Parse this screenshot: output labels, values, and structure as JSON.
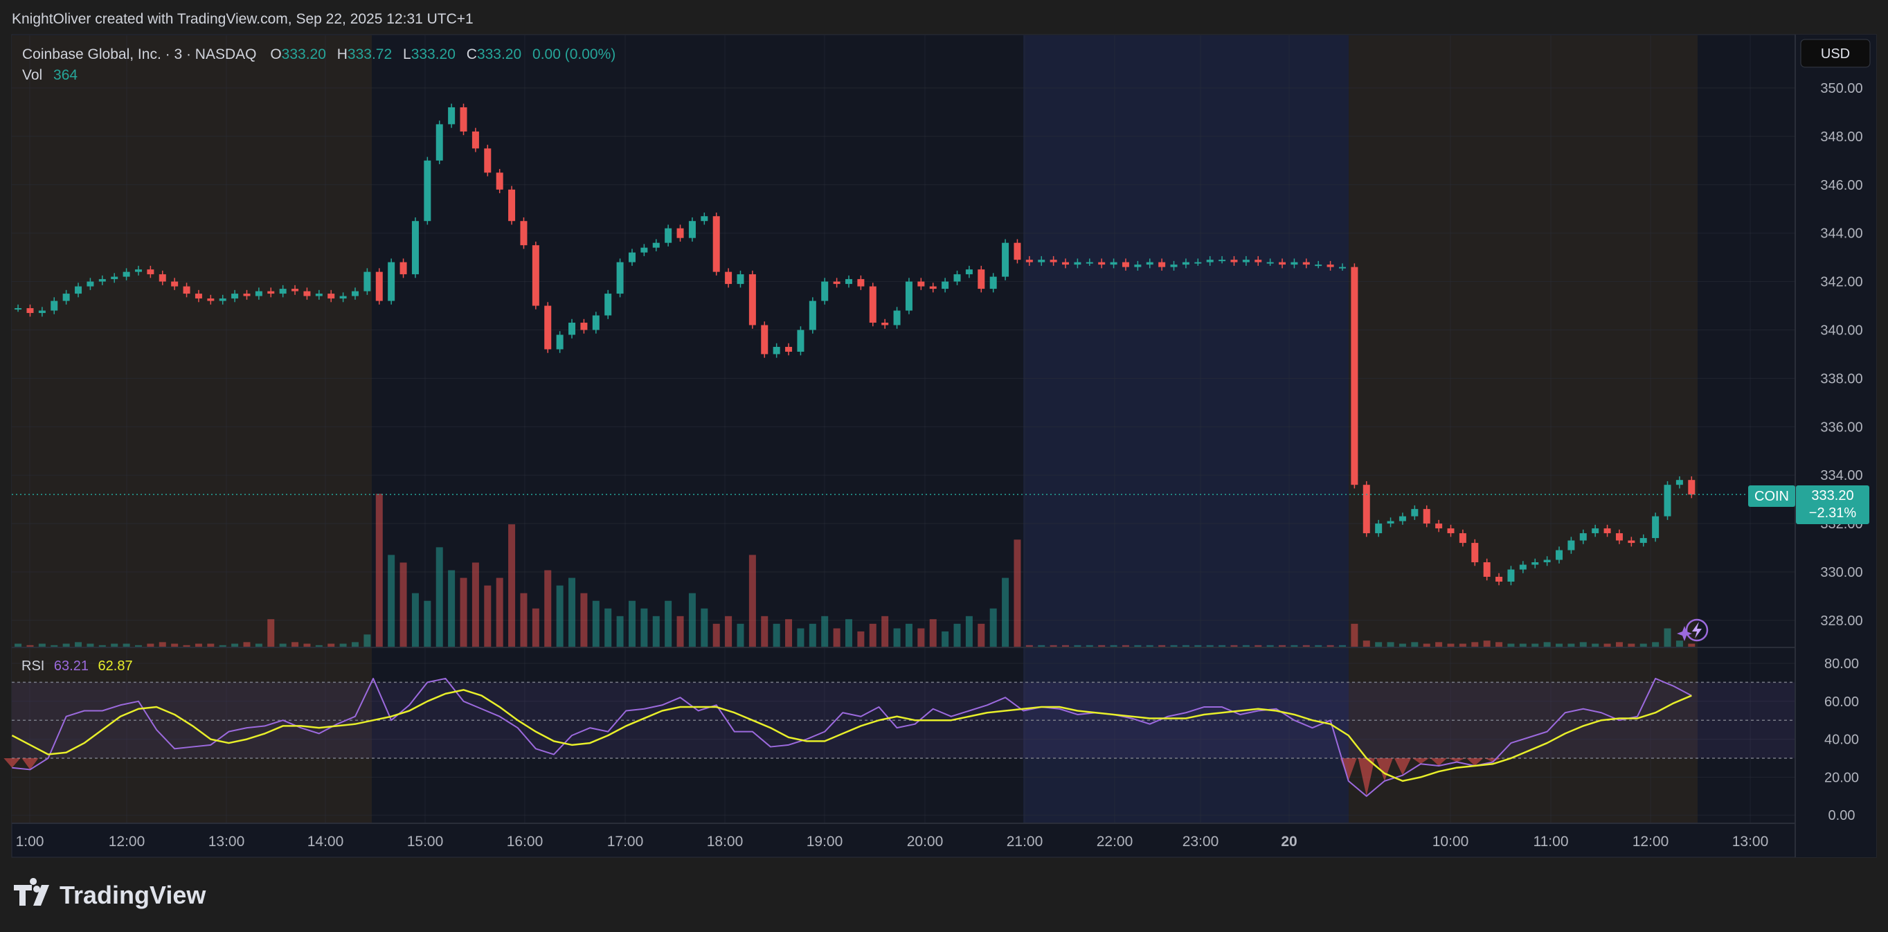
{
  "attribution": "KnightOliver created with TradingView.com, Sep 22, 2025 12:31 UTC+1",
  "legend": {
    "symbol": "Coinbase Global, Inc. · 3 · NASDAQ",
    "o_label": "O",
    "o": "333.20",
    "h_label": "H",
    "h": "333.72",
    "l_label": "L",
    "l": "333.20",
    "c_label": "C",
    "c": "333.20",
    "change": "0.00 (0.00%)",
    "vol_label": "Vol",
    "vol": "364"
  },
  "currency_button": "USD",
  "price_tag": {
    "ticker": "COIN",
    "price": "333.20",
    "change_pct": "−2.31%"
  },
  "rsi_legend": {
    "label": "RSI",
    "rsi": "63.21",
    "ma": "62.87"
  },
  "brand": "TradingView",
  "colors": {
    "up": "#26a69a",
    "down": "#ef5350",
    "rsi": "#9c6ade",
    "rsi_ma": "#e8ef2a",
    "background": "#131722"
  },
  "chart_data": [
    {
      "type": "candlestick",
      "title": "Coinbase Global, Inc. · 3 · NASDAQ",
      "y_ticks": [
        "350.00",
        "348.00",
        "346.00",
        "344.00",
        "342.00",
        "340.00",
        "338.00",
        "336.00",
        "334.00",
        "332.00",
        "330.00",
        "328.00"
      ],
      "ylim": [
        327,
        351
      ],
      "x_ticks": [
        "1:00",
        "12:00",
        "13:00",
        "14:00",
        "15:00",
        "16:00",
        "17:00",
        "18:00",
        "19:00",
        "20:00",
        "21:00",
        "22:00",
        "23:00",
        "20",
        "10:00",
        "11:00",
        "12:00",
        "13:00"
      ],
      "sessions": [
        "pre-market",
        "regular",
        "post-market",
        "pre-market"
      ],
      "close": [
        340.9,
        340.7,
        340.8,
        341.2,
        341.5,
        341.8,
        342.0,
        342.1,
        342.2,
        342.4,
        342.5,
        342.3,
        342.0,
        341.8,
        341.5,
        341.3,
        341.2,
        341.3,
        341.5,
        341.4,
        341.6,
        341.5,
        341.7,
        341.6,
        341.4,
        341.5,
        341.3,
        341.4,
        341.6,
        342.4,
        341.2,
        342.8,
        342.3,
        344.5,
        347.0,
        348.5,
        349.2,
        348.2,
        347.5,
        346.5,
        345.8,
        344.5,
        343.5,
        341.0,
        339.2,
        339.8,
        340.3,
        340.0,
        340.6,
        341.5,
        342.8,
        343.2,
        343.4,
        343.6,
        344.2,
        343.8,
        344.5,
        344.7,
        342.4,
        341.9,
        342.3,
        340.2,
        339.0,
        339.3,
        339.1,
        340.0,
        341.2,
        342.0,
        341.9,
        342.1,
        341.8,
        340.3,
        340.2,
        340.8,
        342.0,
        341.8,
        341.7,
        342.0,
        342.3,
        342.5,
        341.7,
        342.2,
        343.6,
        342.9,
        342.8,
        342.9,
        342.8,
        342.7,
        342.8,
        342.8,
        342.7,
        342.8,
        342.6,
        342.7,
        342.8,
        342.6,
        342.7,
        342.8,
        342.8,
        342.9,
        342.9,
        342.8,
        342.9,
        342.8,
        342.8,
        342.7,
        342.8,
        342.7,
        342.7,
        342.6,
        342.6,
        333.6,
        331.6,
        332.0,
        332.1,
        332.3,
        332.6,
        332.0,
        331.8,
        331.6,
        331.2,
        330.4,
        329.8,
        329.6,
        330.1,
        330.3,
        330.4,
        330.5,
        330.9,
        331.3,
        331.6,
        331.8,
        331.6,
        331.3,
        331.2,
        331.4,
        332.3,
        333.6,
        333.8,
        333.2
      ],
      "volume_relative": [
        2,
        1,
        2,
        1,
        2,
        3,
        2,
        1,
        2,
        2,
        1,
        2,
        3,
        2,
        1,
        2,
        2,
        1,
        2,
        3,
        2,
        18,
        2,
        3,
        2,
        1,
        2,
        2,
        3,
        8,
        100,
        60,
        55,
        35,
        30,
        65,
        50,
        45,
        55,
        40,
        45,
        80,
        35,
        25,
        50,
        40,
        45,
        35,
        30,
        25,
        20,
        30,
        25,
        20,
        30,
        20,
        35,
        25,
        15,
        20,
        15,
        60,
        20,
        15,
        18,
        12,
        15,
        20,
        12,
        18,
        10,
        15,
        20,
        12,
        15,
        12,
        18,
        10,
        15,
        20,
        15,
        25,
        45,
        70,
        1,
        1,
        1,
        1,
        1,
        1,
        1,
        1,
        1,
        1,
        1,
        1,
        1,
        1,
        1,
        1,
        1,
        1,
        1,
        1,
        1,
        1,
        1,
        1,
        1,
        1,
        1,
        15,
        4,
        3,
        3,
        2,
        3,
        2,
        3,
        2,
        2,
        3,
        4,
        3,
        2,
        2,
        2,
        3,
        2,
        2,
        3,
        2,
        2,
        3,
        2,
        2,
        3,
        12,
        4,
        2
      ],
      "last_price": 333.2
    },
    {
      "type": "line",
      "title": "RSI",
      "y_ticks": [
        "80.00",
        "60.00",
        "40.00",
        "20.00",
        "0.00"
      ],
      "ylim": [
        0,
        80
      ],
      "bands": [
        30,
        50,
        70
      ],
      "series": [
        {
          "name": "RSI",
          "values": [
            25,
            24,
            30,
            52,
            55,
            55,
            58,
            60,
            45,
            35,
            36,
            37,
            44,
            46,
            47,
            50,
            46,
            43,
            48,
            52,
            72,
            50,
            58,
            70,
            72,
            60,
            56,
            52,
            46,
            35,
            32,
            42,
            46,
            44,
            55,
            56,
            58,
            62,
            55,
            58,
            44,
            44,
            36,
            37,
            40,
            44,
            54,
            52,
            57,
            46,
            48,
            56,
            52,
            55,
            58,
            62,
            55,
            57,
            56,
            53,
            54,
            53,
            51,
            48,
            52,
            54,
            57,
            57,
            53,
            55,
            56,
            50,
            46,
            50,
            18,
            10,
            18,
            21,
            27,
            26,
            28,
            26,
            28,
            38,
            41,
            44,
            54,
            56,
            54,
            50,
            52,
            72,
            68,
            63
          ]
        },
        {
          "name": "RSI MA",
          "values": [
            42,
            37,
            32,
            33,
            38,
            45,
            52,
            56,
            57,
            53,
            47,
            40,
            38,
            40,
            43,
            47,
            47,
            46,
            47,
            48,
            50,
            52,
            55,
            60,
            64,
            66,
            63,
            57,
            50,
            44,
            39,
            37,
            38,
            42,
            47,
            51,
            55,
            57,
            57,
            57,
            54,
            50,
            46,
            41,
            39,
            39,
            43,
            47,
            50,
            52,
            50,
            50,
            50,
            52,
            54,
            55,
            56,
            57,
            57,
            55,
            54,
            53,
            52,
            51,
            51,
            51,
            53,
            54,
            55,
            56,
            55,
            53,
            50,
            48,
            42,
            30,
            22,
            18,
            20,
            23,
            25,
            26,
            27,
            30,
            34,
            38,
            43,
            47,
            50,
            51,
            51,
            54,
            59,
            63
          ]
        }
      ]
    }
  ]
}
